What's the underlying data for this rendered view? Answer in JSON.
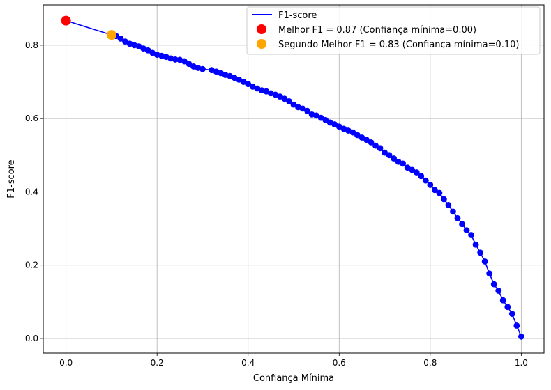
{
  "chart_data": {
    "type": "line",
    "xlabel": "Confiança Mínima",
    "ylabel": "F1-score",
    "xlim": [
      -0.05,
      1.05
    ],
    "ylim": [
      -0.04,
      0.91
    ],
    "xticks": [
      0.0,
      0.2,
      0.4,
      0.6,
      0.8,
      1.0
    ],
    "xtick_labels": [
      "0.0",
      "0.2",
      "0.4",
      "0.6",
      "0.8",
      "1.0"
    ],
    "yticks": [
      0.0,
      0.2,
      0.4,
      0.6,
      0.8
    ],
    "ytick_labels": [
      "0.0",
      "0.2",
      "0.4",
      "0.6",
      "0.8"
    ],
    "grid": true,
    "legend_position": "top-right",
    "colors": {
      "line": "#0000ff",
      "best": "#ff0000",
      "second": "#ffa500",
      "grid": "#b0b0b0"
    },
    "series": [
      {
        "name": "F1-score",
        "x": [
          0.0,
          0.1,
          0.11,
          0.12,
          0.13,
          0.14,
          0.15,
          0.16,
          0.17,
          0.18,
          0.19,
          0.2,
          0.21,
          0.22,
          0.23,
          0.24,
          0.25,
          0.26,
          0.27,
          0.28,
          0.29,
          0.3,
          0.32,
          0.33,
          0.34,
          0.35,
          0.36,
          0.37,
          0.38,
          0.39,
          0.4,
          0.41,
          0.42,
          0.43,
          0.44,
          0.45,
          0.46,
          0.47,
          0.48,
          0.49,
          0.5,
          0.51,
          0.52,
          0.53,
          0.54,
          0.55,
          0.56,
          0.57,
          0.58,
          0.59,
          0.6,
          0.61,
          0.62,
          0.63,
          0.64,
          0.65,
          0.66,
          0.67,
          0.68,
          0.69,
          0.7,
          0.71,
          0.72,
          0.73,
          0.74,
          0.75,
          0.76,
          0.77,
          0.78,
          0.79,
          0.8,
          0.81,
          0.82,
          0.83,
          0.84,
          0.85,
          0.86,
          0.87,
          0.88,
          0.89,
          0.9,
          0.91,
          0.92,
          0.93,
          0.94,
          0.95,
          0.96,
          0.97,
          0.98,
          0.99,
          1.0
        ],
        "y": [
          0.867,
          0.828,
          0.825,
          0.818,
          0.81,
          0.804,
          0.8,
          0.797,
          0.791,
          0.786,
          0.779,
          0.774,
          0.771,
          0.768,
          0.764,
          0.761,
          0.76,
          0.756,
          0.749,
          0.742,
          0.738,
          0.735,
          0.732,
          0.728,
          0.724,
          0.719,
          0.716,
          0.711,
          0.706,
          0.7,
          0.694,
          0.687,
          0.682,
          0.677,
          0.674,
          0.669,
          0.665,
          0.66,
          0.654,
          0.647,
          0.638,
          0.631,
          0.627,
          0.621,
          0.611,
          0.608,
          0.602,
          0.596,
          0.589,
          0.584,
          0.578,
          0.572,
          0.567,
          0.562,
          0.555,
          0.548,
          0.542,
          0.535,
          0.526,
          0.519,
          0.507,
          0.5,
          0.491,
          0.482,
          0.477,
          0.466,
          0.46,
          0.453,
          0.443,
          0.431,
          0.419,
          0.405,
          0.397,
          0.38,
          0.364,
          0.346,
          0.328,
          0.312,
          0.295,
          0.282,
          0.256,
          0.234,
          0.21,
          0.177,
          0.148,
          0.13,
          0.104,
          0.086,
          0.067,
          0.035,
          0.005
        ]
      }
    ],
    "highlights": [
      {
        "label": "Melhor F1 = 0.87 (Confiança mínima=0.00)",
        "x": 0.0,
        "y": 0.867,
        "color": "#ff0000"
      },
      {
        "label": "Segundo Melhor F1 = 0.83 (Confiança mínima=0.10)",
        "x": 0.1,
        "y": 0.828,
        "color": "#ffa500"
      }
    ]
  }
}
